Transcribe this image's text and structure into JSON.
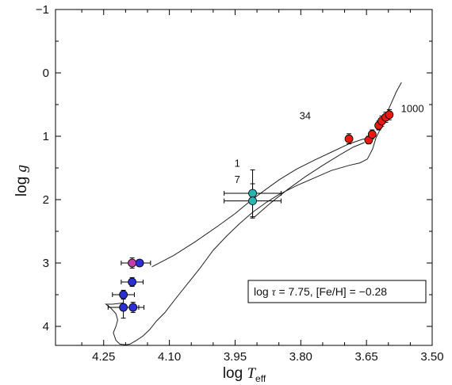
{
  "chart_data": {
    "type": "scatter",
    "xlabel_main": "log ",
    "xlabel_var": "T",
    "xlabel_sub": "eff",
    "ylabel_main": "log ",
    "ylabel_var": "g",
    "xlim": [
      4.36,
      3.5
    ],
    "ylim": [
      -1,
      4.3
    ],
    "x_ticks": [
      4.25,
      4.1,
      3.95,
      3.8,
      3.65,
      3.5
    ],
    "x_tick_labels": [
      "4.25",
      "4.10",
      "3.95",
      "3.80",
      "3.65",
      "3.50"
    ],
    "y_ticks": [
      -1,
      0,
      1,
      2,
      3,
      4
    ],
    "y_tick_labels": [
      "−1",
      "0",
      "1",
      "2",
      "3",
      "4"
    ],
    "box_label": {
      "prefix": "log ",
      "tau": "τ",
      "rest": " = 7.75, [Fe/H] = −0.28"
    },
    "annotations": [
      {
        "text": "1000",
        "x": 3.545,
        "y": 0.62
      },
      {
        "text": "34",
        "x": 3.79,
        "y": 0.73
      },
      {
        "text": "1",
        "x": 3.945,
        "y": 1.48
      },
      {
        "text": "7",
        "x": 3.945,
        "y": 1.74
      }
    ],
    "isochrone": [
      [
        4.205,
        3.63
      ],
      [
        4.23,
        3.65
      ],
      [
        4.245,
        3.65
      ],
      [
        4.235,
        3.7
      ],
      [
        4.222,
        3.8
      ],
      [
        4.218,
        3.9
      ],
      [
        4.222,
        4.0
      ],
      [
        4.228,
        4.1
      ],
      [
        4.222,
        4.22
      ],
      [
        4.213,
        4.28
      ],
      [
        4.2,
        4.29
      ],
      [
        4.19,
        4.28
      ],
      [
        4.175,
        4.22
      ],
      [
        4.16,
        4.15
      ],
      [
        4.145,
        4.05
      ],
      [
        4.13,
        3.92
      ],
      [
        4.11,
        3.78
      ],
      [
        4.09,
        3.6
      ],
      [
        4.06,
        3.34
      ],
      [
        4.03,
        3.08
      ],
      [
        4.0,
        2.8
      ],
      [
        3.97,
        2.58
      ],
      [
        3.94,
        2.38
      ],
      [
        3.91,
        2.2
      ],
      [
        3.88,
        2.05
      ],
      [
        3.85,
        1.92
      ],
      [
        3.81,
        1.78
      ],
      [
        3.77,
        1.66
      ],
      [
        3.73,
        1.54
      ],
      [
        3.69,
        1.46
      ],
      [
        3.665,
        1.42
      ],
      [
        3.648,
        1.36
      ],
      [
        3.636,
        1.2
      ],
      [
        3.628,
        1.02
      ],
      [
        3.615,
        0.84
      ],
      [
        3.6,
        0.58
      ],
      [
        3.582,
        0.3
      ],
      [
        3.57,
        0.15
      ]
    ],
    "isochrone_upper": [
      [
        4.14,
        3.06
      ],
      [
        4.09,
        2.88
      ],
      [
        4.04,
        2.66
      ],
      [
        3.99,
        2.42
      ],
      [
        3.95,
        2.22
      ],
      [
        3.915,
        2.02
      ],
      [
        3.88,
        1.84
      ],
      [
        3.85,
        1.69
      ],
      [
        3.81,
        1.52
      ],
      [
        3.77,
        1.38
      ],
      [
        3.73,
        1.25
      ],
      [
        3.69,
        1.12
      ],
      [
        3.66,
        1.05
      ],
      [
        3.64,
        1.02
      ]
    ],
    "blue_loop": [
      [
        3.905,
        2.27
      ],
      [
        3.87,
        2.06
      ],
      [
        3.83,
        1.84
      ],
      [
        3.79,
        1.64
      ],
      [
        3.75,
        1.46
      ],
      [
        3.71,
        1.29
      ],
      [
        3.68,
        1.17
      ],
      [
        3.655,
        1.1
      ]
    ],
    "series": [
      {
        "color": "#2b2fd4",
        "points": [
          {
            "x": 4.168,
            "y": 3.0,
            "xerr": 0.025,
            "yerr": 0
          },
          {
            "x": 4.185,
            "y": 3.3,
            "xerr": 0.025,
            "yerr": 0.07
          },
          {
            "x": 4.205,
            "y": 3.5,
            "xerr": 0.025,
            "yerr": 0.07
          },
          {
            "x": 4.205,
            "y": 3.7,
            "xerr": 0.035,
            "yerr": 0.17
          },
          {
            "x": 4.183,
            "y": 3.7,
            "xerr": 0.025,
            "yerr": 0.08
          }
        ]
      },
      {
        "color": "#c03fa8",
        "points": [
          {
            "x": 4.185,
            "y": 3.0,
            "xerr": 0.025,
            "yerr": 0.08
          }
        ]
      },
      {
        "color": "#2ab3b0",
        "points": [
          {
            "x": 3.91,
            "y": 1.9,
            "xerr": 0.065,
            "yerr": 0.37
          },
          {
            "x": 3.91,
            "y": 2.02,
            "xerr": 0.065,
            "yerr": 0.27
          }
        ]
      },
      {
        "color": "#e8190f",
        "points": [
          {
            "x": 3.69,
            "y": 1.04,
            "xerr": 0,
            "yerr": 0.08
          },
          {
            "x": 3.645,
            "y": 1.06,
            "xerr": 0,
            "yerr": 0.06
          },
          {
            "x": 3.637,
            "y": 0.97,
            "xerr": 0,
            "yerr": 0.07
          },
          {
            "x": 3.622,
            "y": 0.83,
            "xerr": 0,
            "yerr": 0.07
          },
          {
            "x": 3.615,
            "y": 0.76,
            "xerr": 0,
            "yerr": 0.08
          },
          {
            "x": 3.606,
            "y": 0.7,
            "xerr": 0,
            "yerr": 0.08
          },
          {
            "x": 3.598,
            "y": 0.66,
            "xerr": 0,
            "yerr": 0.08
          }
        ]
      }
    ]
  }
}
